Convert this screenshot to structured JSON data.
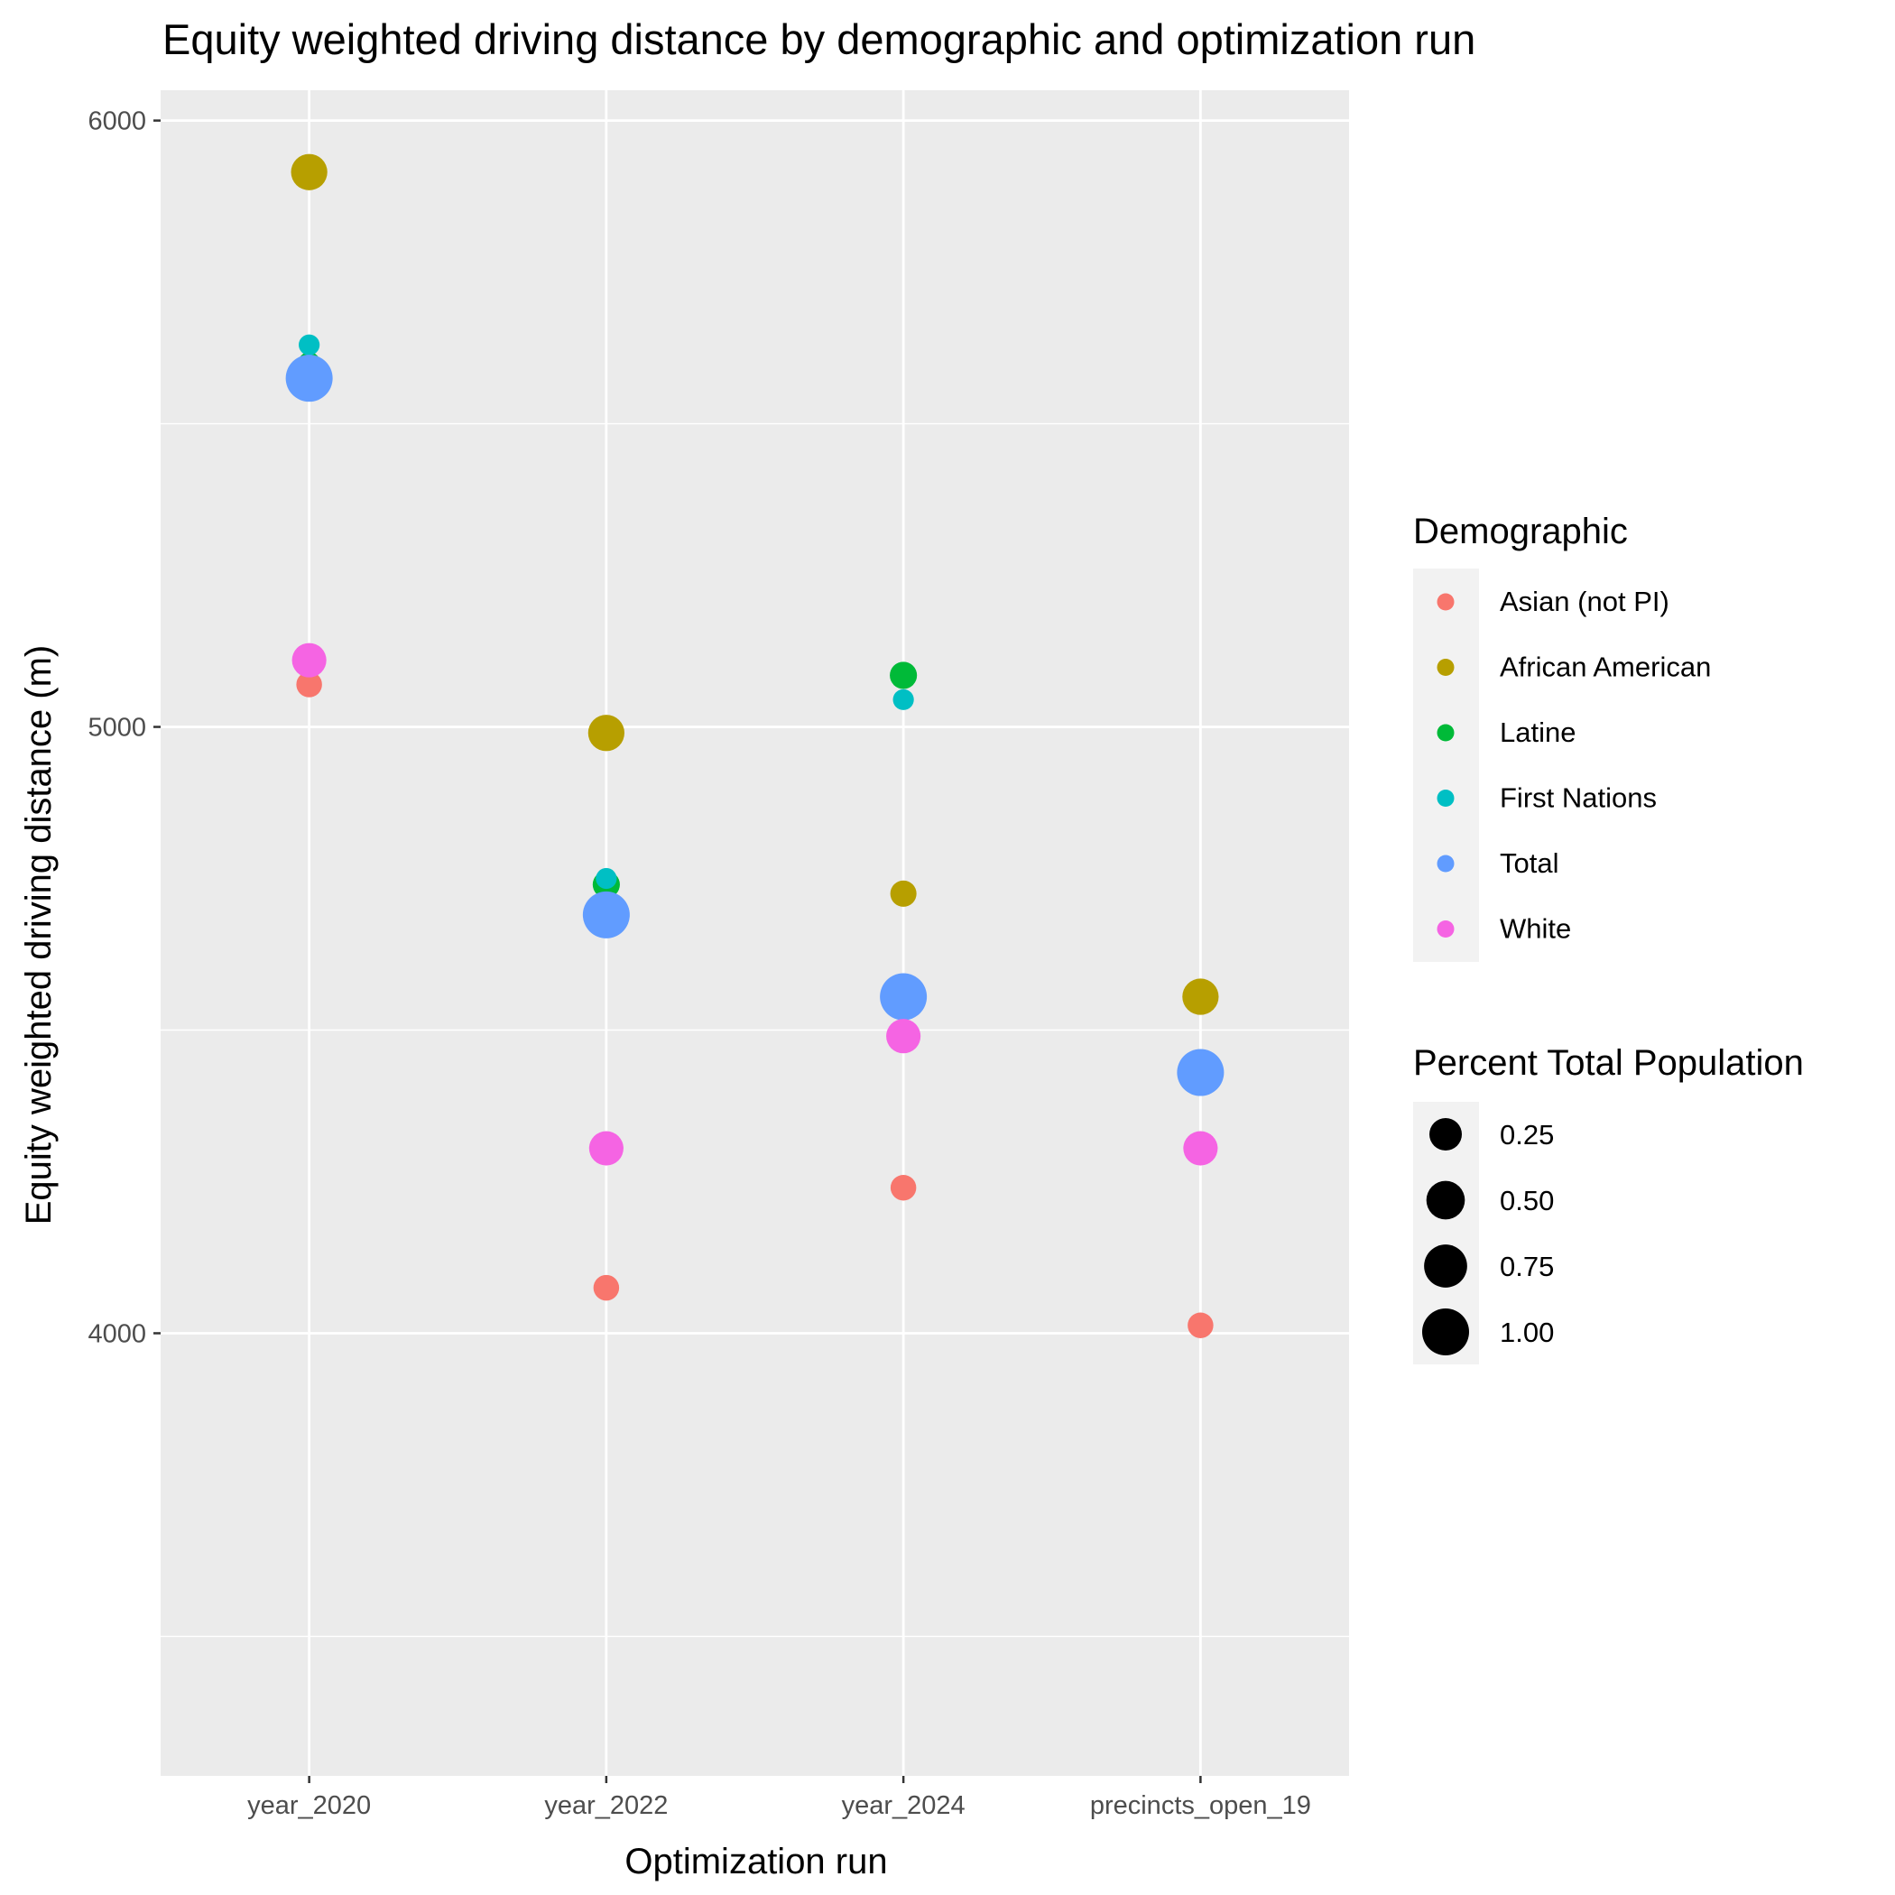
{
  "chart_data": {
    "type": "scatter",
    "title": "Equity weighted driving distance by demographic and optimization run",
    "xlabel": "Optimization run",
    "ylabel": "Equity weighted driving distance (m)",
    "categories": [
      "year_2020",
      "year_2022",
      "year_2024",
      "precincts_open_19"
    ],
    "ylim": [
      3270,
      6050
    ],
    "y_ticks": [
      4000,
      5000,
      6000
    ],
    "y_tick_labels": [
      "4000",
      "5000",
      "6000"
    ],
    "y_minor_ticks": [
      3500,
      4500,
      5500
    ],
    "grid": true,
    "legend_position": "right",
    "color_legend": {
      "title": "Demographic",
      "entries": [
        {
          "label": "Asian (not PI)",
          "color": "#F8766D"
        },
        {
          "label": "African American",
          "color": "#B79F00"
        },
        {
          "label": "Latine",
          "color": "#00BA38"
        },
        {
          "label": "First Nations",
          "color": "#00BFC4"
        },
        {
          "label": "Total",
          "color": "#619CFF"
        },
        {
          "label": "White",
          "color": "#F564E3"
        }
      ]
    },
    "size_legend": {
      "title": "Percent Total Population",
      "entries": [
        {
          "label": "0.25",
          "value": 0.25
        },
        {
          "label": "0.50",
          "value": 0.5
        },
        {
          "label": "0.75",
          "value": 0.75
        },
        {
          "label": "1.00",
          "value": 1.0
        }
      ]
    },
    "series": [
      {
        "name": "Asian (not PI)",
        "color": "#F8766D",
        "points": [
          {
            "x": "year_2020",
            "y": 5070,
            "size": 0.07
          },
          {
            "x": "year_2022",
            "y": 4075,
            "size": 0.07
          },
          {
            "x": "year_2024",
            "y": 4240,
            "size": 0.07
          },
          {
            "x": "precincts_open_19",
            "y": 4013,
            "size": 0.07
          }
        ]
      },
      {
        "name": "African American",
        "color": "#B79F00",
        "points": [
          {
            "x": "year_2020",
            "y": 5915,
            "size": 0.4
          },
          {
            "x": "year_2022",
            "y": 4990,
            "size": 0.4
          },
          {
            "x": "year_2024",
            "y": 4725,
            "size": 0.08
          },
          {
            "x": "precincts_open_19",
            "y": 4555,
            "size": 0.4
          }
        ]
      },
      {
        "name": "Latine",
        "color": "#00BA38",
        "points": [
          {
            "x": "year_2020",
            "y": 5600,
            "size": 0.02
          },
          {
            "x": "year_2022",
            "y": 4740,
            "size": 0.1
          },
          {
            "x": "year_2024",
            "y": 5085,
            "size": 0.1
          }
        ]
      },
      {
        "name": "First Nations",
        "color": "#00BFC4",
        "points": [
          {
            "x": "year_2020",
            "y": 5630,
            "size": 0.01
          },
          {
            "x": "year_2022",
            "y": 4750,
            "size": 0.01
          },
          {
            "x": "year_2024",
            "y": 5045,
            "size": 0.01
          }
        ]
      },
      {
        "name": "Total",
        "color": "#619CFF",
        "points": [
          {
            "x": "year_2020",
            "y": 5575,
            "size": 1.0
          },
          {
            "x": "year_2022",
            "y": 4690,
            "size": 1.0
          },
          {
            "x": "year_2024",
            "y": 4555,
            "size": 1.0
          },
          {
            "x": "precincts_open_19",
            "y": 4430,
            "size": 1.0
          }
        ]
      },
      {
        "name": "White",
        "color": "#F564E3",
        "points": [
          {
            "x": "year_2020",
            "y": 5110,
            "size": 0.32
          },
          {
            "x": "year_2022",
            "y": 4305,
            "size": 0.32
          },
          {
            "x": "year_2024",
            "y": 4490,
            "size": 0.32
          },
          {
            "x": "precincts_open_19",
            "y": 4305,
            "size": 0.32
          }
        ]
      }
    ]
  }
}
